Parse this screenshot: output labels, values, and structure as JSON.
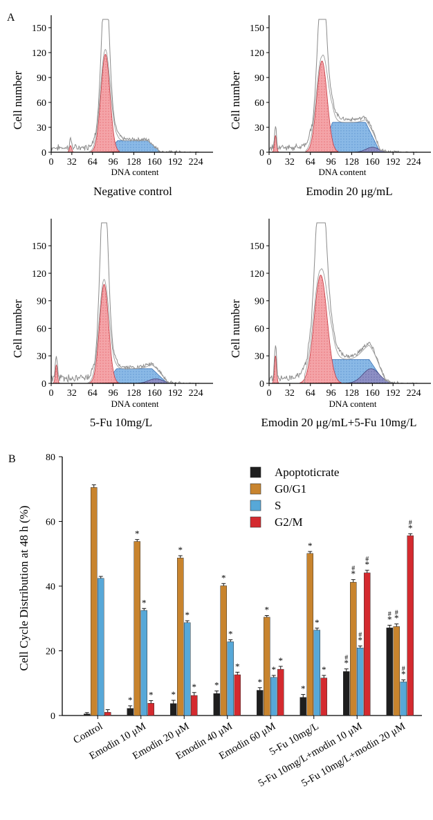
{
  "panel_labels": {
    "a": "A",
    "b": "B"
  },
  "chart_data": [
    {
      "type": "area",
      "panel": "A",
      "ylabel": "Cell number",
      "xlabel": "DNA content",
      "caption": "Negative control",
      "xlim": [
        0,
        240
      ],
      "ylim": [
        0,
        160
      ],
      "yticks": [
        0,
        30,
        60,
        90,
        120,
        150
      ],
      "xticks": [
        0,
        32,
        64,
        96,
        128,
        160,
        192,
        224
      ],
      "xticklabels": [
        "0",
        "32",
        "64",
        "96",
        "128",
        "160",
        "192",
        "224"
      ],
      "yticklabels": [
        "0",
        "30",
        "60",
        "90",
        "120",
        "150"
      ],
      "g1": {
        "center": 84,
        "width": 7,
        "height": 118
      },
      "s": {
        "start": 88,
        "end": 170,
        "height": 14
      },
      "g2": {
        "center": 0,
        "width": 0,
        "height": 0
      },
      "debris": {
        "center": 30,
        "height": 8
      },
      "histogram_peak": 158
    },
    {
      "type": "area",
      "panel": "A",
      "ylabel": "Cell number",
      "xlabel": "DNA content",
      "caption": "Emodin 20 μg/mL",
      "xlim": [
        0,
        240
      ],
      "ylim": [
        0,
        160
      ],
      "yticks": [
        0,
        30,
        60,
        90,
        120,
        150
      ],
      "xticks": [
        0,
        32,
        64,
        96,
        128,
        160,
        192,
        224
      ],
      "xticklabels": [
        "0",
        "32",
        "64",
        "96",
        "128",
        "160",
        "192",
        "224"
      ],
      "yticklabels": [
        "0",
        "30",
        "60",
        "90",
        "120",
        "150"
      ],
      "g1": {
        "center": 82,
        "width": 8,
        "height": 110
      },
      "s": {
        "start": 82,
        "end": 172,
        "height": 36
      },
      "g2": {
        "center": 160,
        "width": 10,
        "height": 6
      },
      "debris": {
        "center": 10,
        "height": 20
      },
      "histogram_peak": 160
    },
    {
      "type": "area",
      "panel": "A",
      "ylabel": "Cell number",
      "xlabel": "DNA content",
      "caption": "5-Fu 10mg/L",
      "xlim": [
        0,
        240
      ],
      "ylim": [
        0,
        175
      ],
      "yticks": [
        0,
        30,
        60,
        90,
        120,
        150
      ],
      "xticks": [
        0,
        32,
        64,
        96,
        128,
        160,
        192,
        224
      ],
      "xticklabels": [
        "0",
        "32",
        "64",
        "96",
        "128",
        "160",
        "192",
        "224"
      ],
      "yticklabels": [
        "0",
        "30",
        "60",
        "90",
        "120",
        "150"
      ],
      "g1": {
        "center": 82,
        "width": 7,
        "height": 108
      },
      "s": {
        "start": 84,
        "end": 180,
        "height": 16
      },
      "g2": {
        "center": 162,
        "width": 11,
        "height": 5
      },
      "debris": {
        "center": 8,
        "height": 20
      },
      "histogram_peak": 176
    },
    {
      "type": "area",
      "panel": "A",
      "ylabel": "Cell number",
      "xlabel": "DNA content",
      "caption": "Emodin 20 μg/mL+5-Fu 10mg/L",
      "xlim": [
        0,
        240
      ],
      "ylim": [
        0,
        175
      ],
      "yticks": [
        0,
        30,
        60,
        90,
        120,
        150
      ],
      "xticks": [
        0,
        32,
        64,
        96,
        128,
        160,
        192,
        224
      ],
      "xticklabels": [
        "0",
        "32",
        "64",
        "96",
        "128",
        "160",
        "192",
        "224"
      ],
      "yticklabels": [
        "0",
        "30",
        "60",
        "90",
        "120",
        "150"
      ],
      "g1": {
        "center": 80,
        "width": 10,
        "height": 118
      },
      "s": {
        "start": 80,
        "end": 180,
        "height": 26
      },
      "g2": {
        "center": 158,
        "width": 13,
        "height": 16
      },
      "debris": {
        "center": 10,
        "height": 30
      },
      "histogram_peak": 176
    },
    {
      "type": "bar",
      "panel": "B",
      "ylabel": "Cell Cycle Distribution at 48 h (%)",
      "ylim": [
        0,
        80
      ],
      "yticks": [
        0,
        20,
        40,
        60,
        80
      ],
      "categories": [
        "Control",
        "Emodin 10 μM",
        "Emodin 20 μM",
        "Emodin 40 μM",
        "Emodin 60 μM",
        "5-Fu 10mg/L",
        "5-Fu 10mg/L+modin 10 μM",
        "5-Fu 10mg/L+modin 20 μM"
      ],
      "legend_position": "top-right",
      "series": [
        {
          "name": "Apoptoticrate",
          "color": "#1e1e1e",
          "values": [
            0.5,
            2.2,
            3.7,
            6.8,
            7.8,
            5.6,
            13.6,
            27.1
          ],
          "errors": [
            0.4,
            0.8,
            1.0,
            0.8,
            0.8,
            0.9,
            0.8,
            0.8
          ],
          "marks": [
            "",
            "*",
            "*",
            "*",
            "*",
            "*",
            "#\n*",
            "#\n*"
          ]
        },
        {
          "name": "G0/G1",
          "color": "#c8842e",
          "values": [
            70.5,
            53.8,
            48.7,
            40.1,
            30.4,
            50.1,
            41.2,
            27.5
          ],
          "errors": [
            0.8,
            0.6,
            0.7,
            0.7,
            0.5,
            0.6,
            0.8,
            0.8
          ],
          "marks": [
            "",
            "*",
            "*",
            "*",
            "*",
            "*",
            "#\n*",
            "#\n*"
          ]
        },
        {
          "name": "S",
          "color": "#57a8d8",
          "values": [
            42.4,
            32.5,
            28.7,
            22.8,
            11.8,
            26.4,
            20.9,
            10.4
          ],
          "errors": [
            0.6,
            0.6,
            0.6,
            0.6,
            0.6,
            0.6,
            0.6,
            0.6
          ],
          "marks": [
            "",
            "*",
            "*",
            "*",
            "*",
            "*",
            "#\n*",
            "#\n*"
          ]
        },
        {
          "name": "G2/M",
          "color": "#d42a2f",
          "values": [
            1.0,
            3.8,
            6.2,
            12.6,
            14.3,
            11.6,
            44.1,
            55.6
          ],
          "errors": [
            0.8,
            0.8,
            0.9,
            0.8,
            0.9,
            0.8,
            0.8,
            0.6
          ],
          "marks": [
            "",
            "*",
            "*",
            "*",
            "*",
            "*",
            "#\n*",
            "#\n*"
          ]
        }
      ]
    }
  ]
}
